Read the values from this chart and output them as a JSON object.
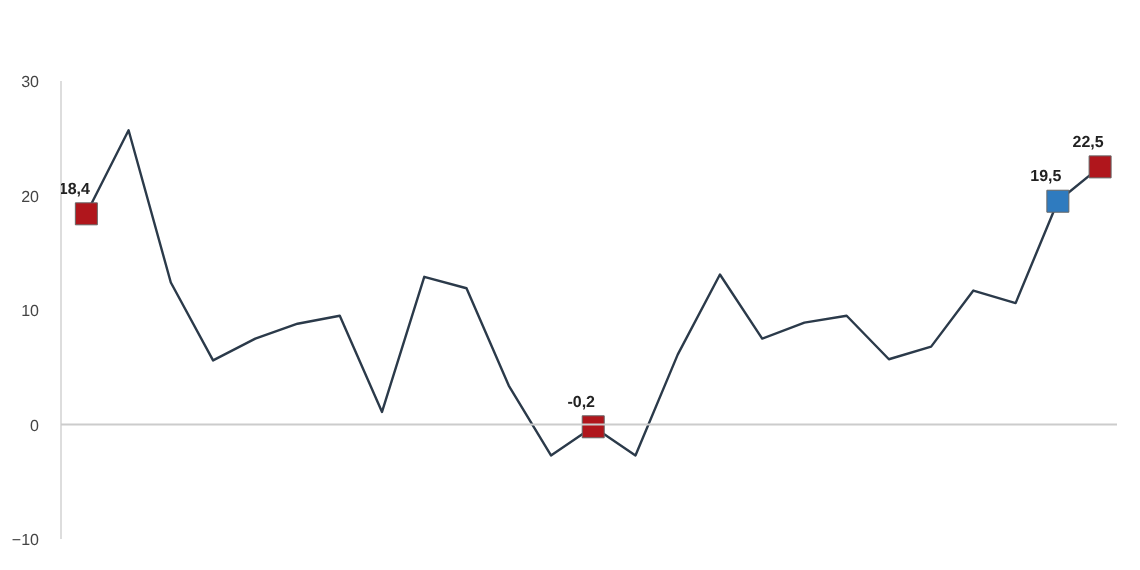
{
  "chart_data": {
    "type": "line",
    "categories": [
      null,
      null,
      null,
      null,
      null,
      null,
      null,
      null,
      null,
      null,
      null,
      null,
      null,
      null,
      null,
      null,
      null,
      null,
      null,
      null,
      null,
      null,
      null,
      null,
      null
    ],
    "series": [
      {
        "color": "#2b3a4a",
        "marker": "none",
        "values": [
          18.4,
          25.7,
          12.4,
          5.6,
          7.5,
          8.8,
          9.5,
          1.1,
          12.9,
          11.9,
          3.4,
          -2.7,
          -0.2,
          -2.7,
          6.1,
          13.1,
          7.5,
          8.9,
          9.5,
          5.7,
          6.8,
          11.7,
          10.6,
          19.5,
          22.5
        ]
      },
      {
        "type": "scatter",
        "marker": "square",
        "colors": [
          null,
          null,
          null,
          null,
          null,
          null,
          null,
          null,
          null,
          null,
          null,
          null,
          "#b0161c",
          null,
          null,
          null,
          null,
          null,
          null,
          null,
          null,
          null,
          null,
          "#2f7bbf",
          "#b0161c"
        ],
        "color": "#b0161c",
        "values": [
          18.4,
          null,
          null,
          null,
          null,
          null,
          null,
          null,
          null,
          null,
          null,
          null,
          -0.2,
          null,
          null,
          null,
          null,
          null,
          null,
          null,
          null,
          null,
          null,
          19.5,
          22.5
        ],
        "value_labels": [
          "18,4",
          null,
          null,
          null,
          null,
          null,
          null,
          null,
          null,
          null,
          null,
          null,
          "-0,2",
          null,
          null,
          null,
          null,
          null,
          null,
          null,
          null,
          null,
          null,
          "19,5",
          "22,5"
        ]
      }
    ],
    "ylim": [
      -10,
      30
    ],
    "yticks": [
      -10,
      0,
      10,
      20,
      30
    ],
    "grid": false,
    "ref_lines": [
      {
        "axis": "y",
        "value": 0,
        "color": "#cccccc"
      }
    ]
  }
}
